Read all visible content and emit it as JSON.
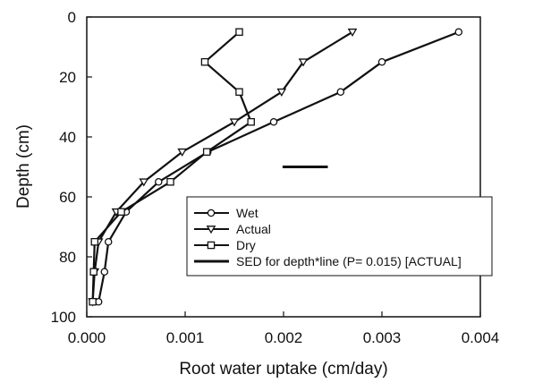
{
  "chart_data": {
    "type": "line",
    "xlabel": "Root water uptake (cm/day)",
    "ylabel": "Depth (cm)",
    "xlim": [
      0,
      0.004
    ],
    "ylim": [
      0,
      100
    ],
    "y_inverted": true,
    "x_ticks": [
      {
        "value": 0.0,
        "label": "0.000"
      },
      {
        "value": 0.001,
        "label": "0.001"
      },
      {
        "value": 0.002,
        "label": "0.002"
      },
      {
        "value": 0.003,
        "label": "0.003"
      },
      {
        "value": 0.004,
        "label": "0.004"
      }
    ],
    "y_ticks": [
      {
        "value": 0,
        "label": "0"
      },
      {
        "value": 20,
        "label": "20"
      },
      {
        "value": 40,
        "label": "40"
      },
      {
        "value": 60,
        "label": "60"
      },
      {
        "value": 80,
        "label": "80"
      },
      {
        "value": 100,
        "label": "100"
      }
    ],
    "grid": false,
    "legend_position": "bottom-right",
    "series": [
      {
        "name": "Wet",
        "marker": "circle",
        "points": [
          {
            "x": 0.00378,
            "y": 5
          },
          {
            "x": 0.003,
            "y": 15
          },
          {
            "x": 0.00258,
            "y": 25
          },
          {
            "x": 0.0019,
            "y": 35
          },
          {
            "x": 0.00123,
            "y": 45
          },
          {
            "x": 0.00073,
            "y": 55
          },
          {
            "x": 0.0004,
            "y": 65
          },
          {
            "x": 0.00022,
            "y": 75
          },
          {
            "x": 0.00018,
            "y": 85
          },
          {
            "x": 0.00012,
            "y": 95
          }
        ]
      },
      {
        "name": "Actual",
        "marker": "triangle-down",
        "points": [
          {
            "x": 0.0027,
            "y": 5
          },
          {
            "x": 0.0022,
            "y": 15
          },
          {
            "x": 0.00198,
            "y": 25
          },
          {
            "x": 0.0015,
            "y": 35
          },
          {
            "x": 0.00097,
            "y": 45
          },
          {
            "x": 0.00058,
            "y": 55
          },
          {
            "x": 0.0003,
            "y": 65
          },
          {
            "x": 0.00012,
            "y": 75
          },
          {
            "x": 8e-05,
            "y": 85
          },
          {
            "x": 6e-05,
            "y": 95
          }
        ]
      },
      {
        "name": "Dry",
        "marker": "square",
        "points": [
          {
            "x": 0.00155,
            "y": 5
          },
          {
            "x": 0.0012,
            "y": 15
          },
          {
            "x": 0.00155,
            "y": 25
          },
          {
            "x": 0.00167,
            "y": 35
          },
          {
            "x": 0.00122,
            "y": 45
          },
          {
            "x": 0.00085,
            "y": 55
          },
          {
            "x": 0.00035,
            "y": 65
          },
          {
            "x": 8e-05,
            "y": 75
          },
          {
            "x": 7e-05,
            "y": 85
          },
          {
            "x": 6e-05,
            "y": 95
          }
        ]
      }
    ],
    "sed_bar": {
      "name": "SED for depth*line (P= 0.015) [ACTUAL]",
      "x_start": 0.00199,
      "x_end": 0.00245,
      "y": 50
    }
  }
}
